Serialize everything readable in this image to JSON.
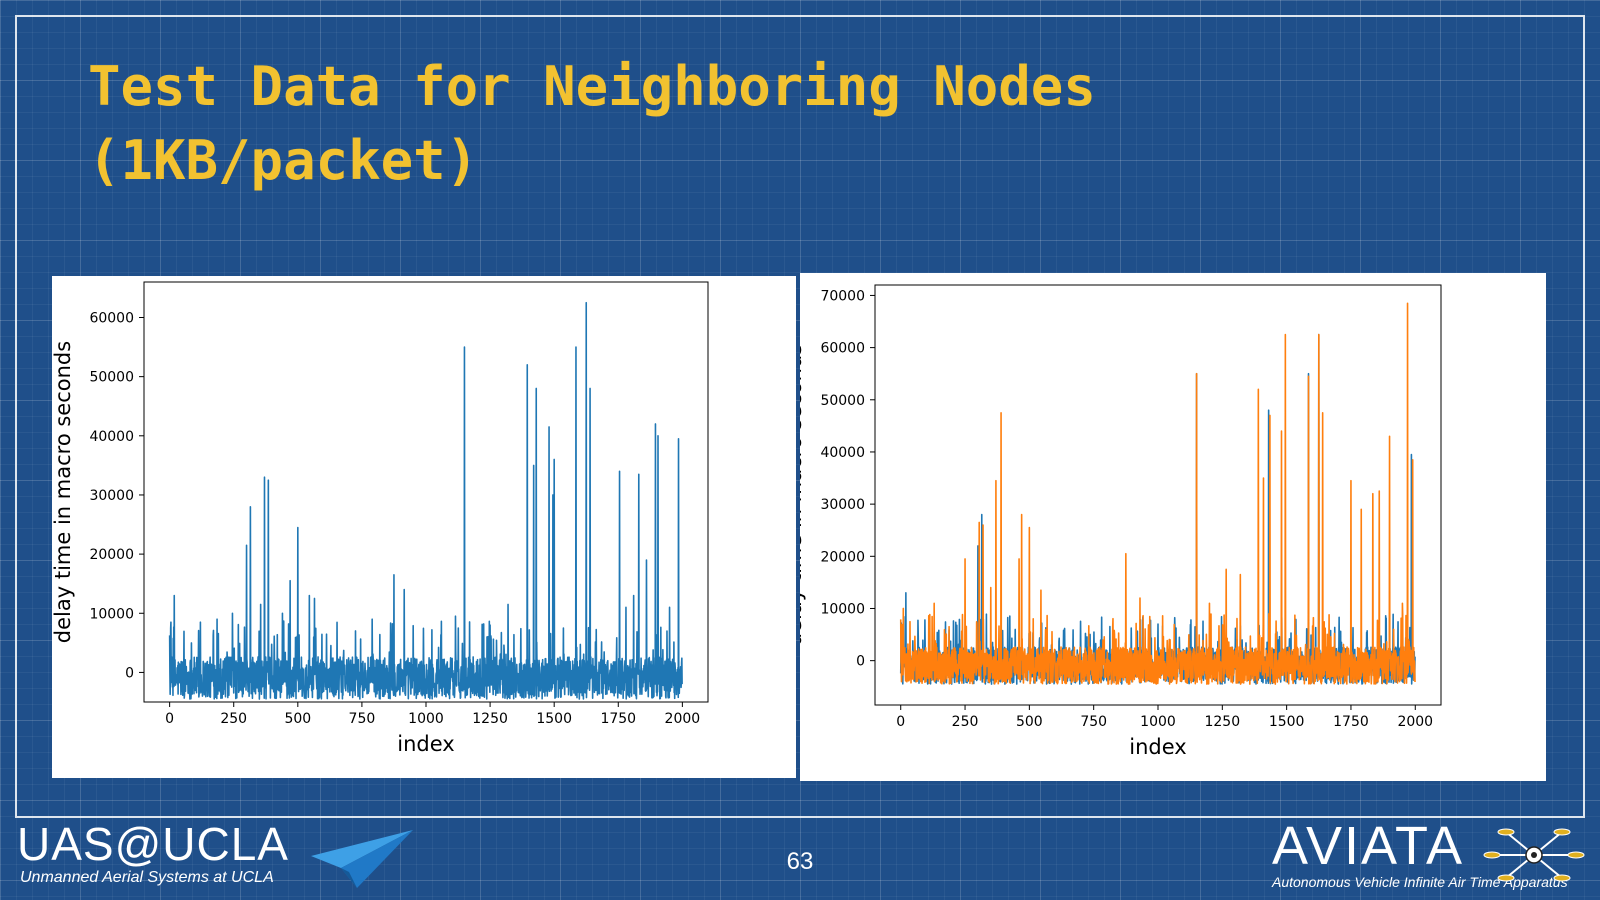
{
  "slide": {
    "title": "Test Data for Neighboring Nodes\n(1KB/packet)",
    "page_number": "63"
  },
  "footer": {
    "left_logo_title": "UAS@UCLA",
    "left_logo_subtitle": "Unmanned Aerial Systems at UCLA",
    "right_logo_title": "AVIATA",
    "right_logo_subtitle": "Autonomous Vehicle Infinite Air Time Apparatus"
  },
  "colors": {
    "background": "#1f4f8a",
    "title": "#f2c230",
    "series_blue": "#1f77b4",
    "series_orange": "#ff7f0e"
  },
  "chart_data": [
    {
      "type": "line",
      "title": "",
      "xlabel": "index",
      "ylabel": "delay time in macro seconds",
      "xlim": [
        -100,
        2100
      ],
      "ylim": [
        -5000,
        66000
      ],
      "xticks": [
        "0",
        "250",
        "500",
        "750",
        "1000",
        "1250",
        "1500",
        "1750",
        "2000"
      ],
      "yticks": [
        "0",
        "10000",
        "20000",
        "30000",
        "40000",
        "50000",
        "60000"
      ],
      "grid": false,
      "n_points": 2000,
      "noise_range": [
        -4500,
        5000
      ],
      "series": [
        {
          "color": "#1f77b4",
          "peaks": [
            [
              5,
              8500
            ],
            [
              18,
              13000
            ],
            [
              120,
              8500
            ],
            [
              185,
              9000
            ],
            [
              245,
              10000
            ],
            [
              300,
              21500
            ],
            [
              315,
              28000
            ],
            [
              355,
              11500
            ],
            [
              370,
              33000
            ],
            [
              385,
              32500
            ],
            [
              440,
              10000
            ],
            [
              470,
              15500
            ],
            [
              500,
              24500
            ],
            [
              545,
              13000
            ],
            [
              565,
              12500
            ],
            [
              790,
              9000
            ],
            [
              875,
              16500
            ],
            [
              915,
              14000
            ],
            [
              1115,
              9500
            ],
            [
              1150,
              55000
            ],
            [
              1250,
              8000
            ],
            [
              1320,
              11500
            ],
            [
              1395,
              52000
            ],
            [
              1420,
              35000
            ],
            [
              1430,
              48000
            ],
            [
              1480,
              41500
            ],
            [
              1495,
              30000
            ],
            [
              1500,
              36000
            ],
            [
              1585,
              55000
            ],
            [
              1625,
              62500
            ],
            [
              1640,
              48000
            ],
            [
              1755,
              34000
            ],
            [
              1780,
              11000
            ],
            [
              1810,
              13000
            ],
            [
              1830,
              33500
            ],
            [
              1860,
              19000
            ],
            [
              1895,
              42000
            ],
            [
              1905,
              40000
            ],
            [
              1950,
              11000
            ],
            [
              1985,
              39500
            ]
          ]
        }
      ]
    },
    {
      "type": "line",
      "title": "",
      "xlabel": "index",
      "ylabel": "delay time in macro seconds",
      "xlim": [
        -100,
        2100
      ],
      "ylim": [
        -8500,
        72000
      ],
      "xticks": [
        "0",
        "250",
        "500",
        "750",
        "1000",
        "1250",
        "1500",
        "1750",
        "2000"
      ],
      "yticks": [
        "0",
        "10000",
        "20000",
        "30000",
        "40000",
        "50000",
        "60000",
        "70000"
      ],
      "grid": false,
      "n_points": 2000,
      "noise_range": [
        -4500,
        5000
      ],
      "series": [
        {
          "color": "#1f77b4",
          "peaks": [
            [
              20,
              13000
            ],
            [
              300,
              22000
            ],
            [
              315,
              28000
            ],
            [
              1150,
              55000
            ],
            [
              1430,
              48000
            ],
            [
              1585,
              55000
            ],
            [
              1625,
              62500
            ],
            [
              1985,
              39500
            ]
          ]
        },
        {
          "color": "#ff7f0e",
          "peaks": [
            [
              10,
              10000
            ],
            [
              130,
              11000
            ],
            [
              250,
              19500
            ],
            [
              305,
              26500
            ],
            [
              320,
              26000
            ],
            [
              350,
              14000
            ],
            [
              370,
              34500
            ],
            [
              390,
              47500
            ],
            [
              460,
              19500
            ],
            [
              470,
              28000
            ],
            [
              500,
              25500
            ],
            [
              545,
              13500
            ],
            [
              875,
              20500
            ],
            [
              930,
              12000
            ],
            [
              1150,
              55000
            ],
            [
              1200,
              11000
            ],
            [
              1265,
              17500
            ],
            [
              1320,
              16500
            ],
            [
              1390,
              52000
            ],
            [
              1410,
              35000
            ],
            [
              1435,
              47000
            ],
            [
              1480,
              44000
            ],
            [
              1495,
              62500
            ],
            [
              1585,
              54500
            ],
            [
              1625,
              62500
            ],
            [
              1640,
              47500
            ],
            [
              1750,
              34500
            ],
            [
              1790,
              29000
            ],
            [
              1835,
              32000
            ],
            [
              1860,
              32500
            ],
            [
              1900,
              43000
            ],
            [
              1950,
              11000
            ],
            [
              1970,
              68500
            ],
            [
              1990,
              38500
            ]
          ]
        }
      ]
    }
  ]
}
